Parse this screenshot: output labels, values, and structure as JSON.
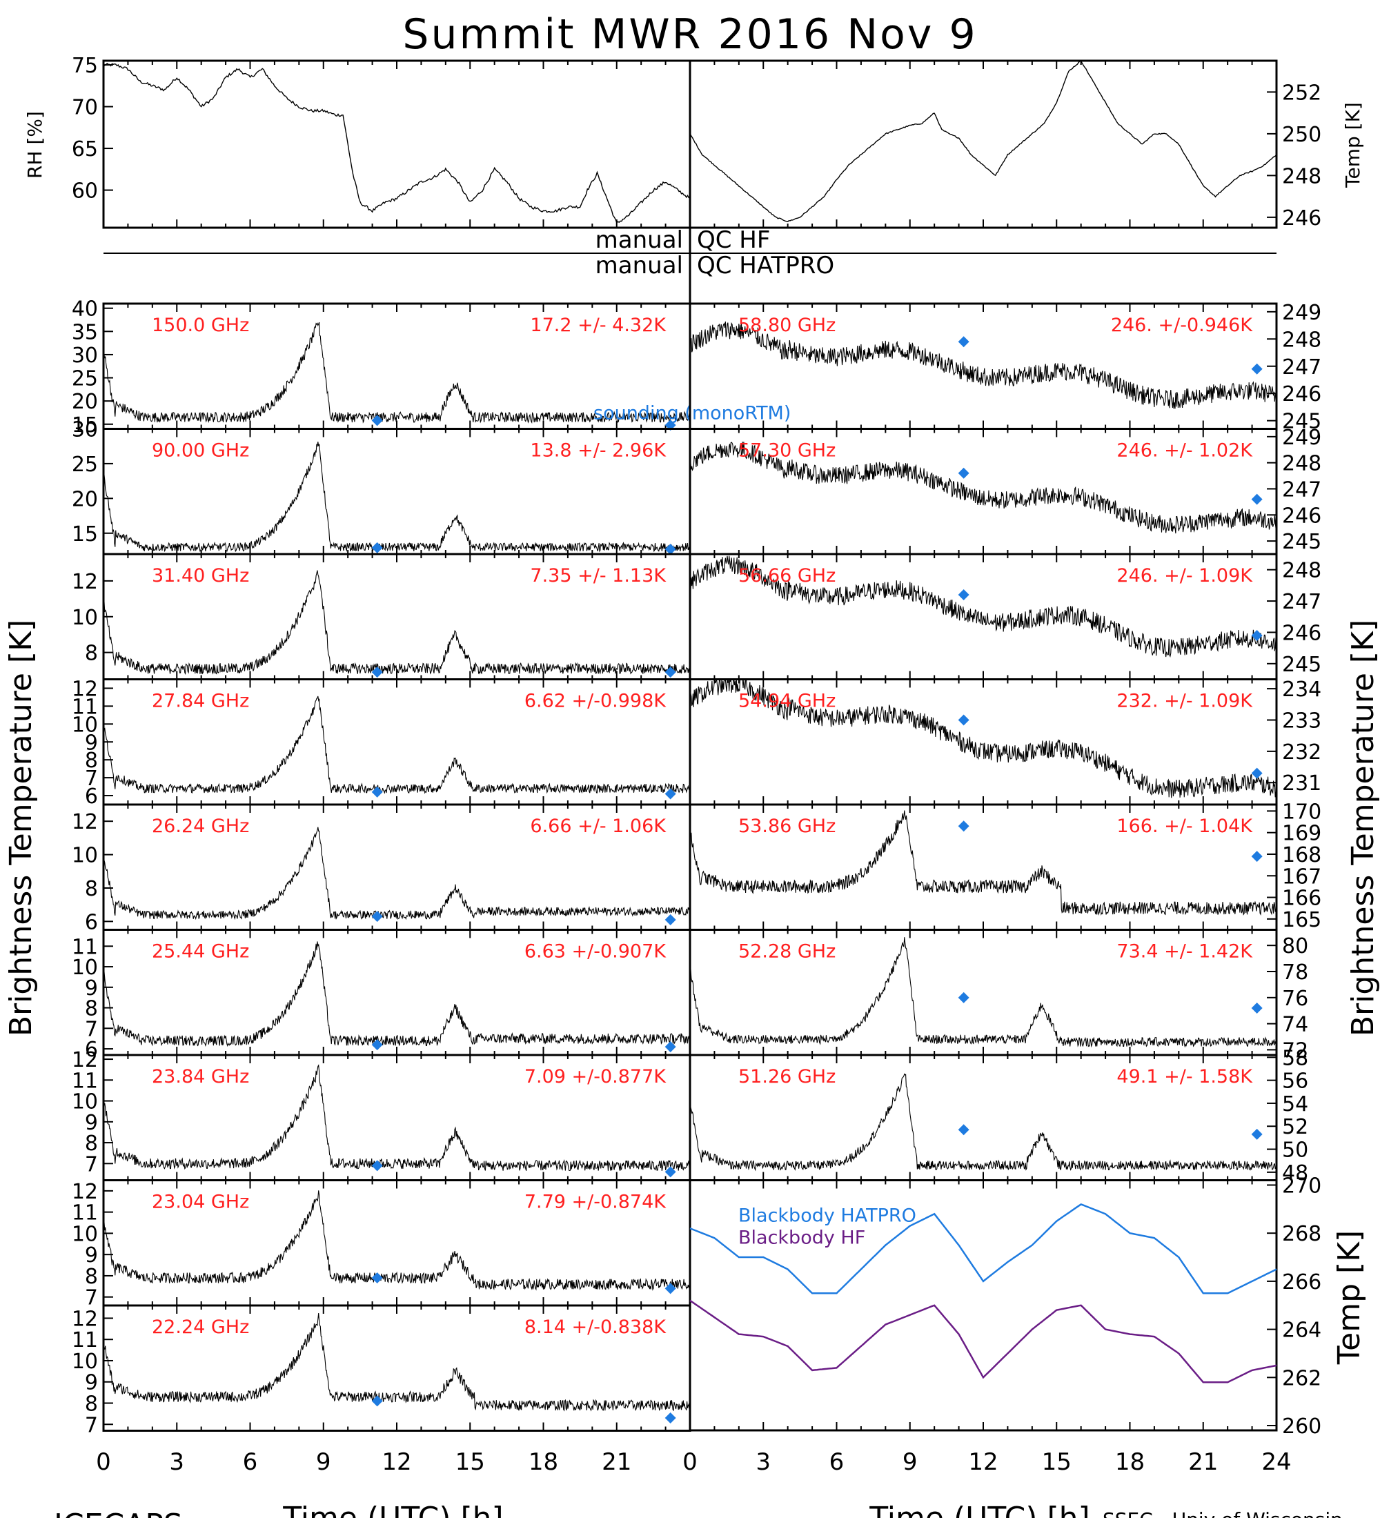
{
  "figure": {
    "title": "Summit MWR 2016 Nov  9",
    "bottom_left_label": "ICECAPS",
    "credit": "SSEC - Univ of Wisconsin",
    "xlabel": "Time (UTC) [h]",
    "left_ylabel": "Brightness Temperature [K]",
    "right_ylabel": "Brightness Temperature [K]",
    "qc_hf": "manual   QC HF",
    "qc_hatpro": "manual   QC HATPRO",
    "x_ticks": [
      "0",
      "3",
      "6",
      "9",
      "12",
      "15",
      "18",
      "21",
      "24"
    ],
    "left_x_ticks": [
      "0",
      "3",
      "6",
      "9",
      "12",
      "15",
      "18",
      "21"
    ],
    "colors": {
      "channel_text": "#ff2020",
      "sounding": "#1e7be0",
      "hatpro": "#1e7be0",
      "hf": "#6a1d86",
      "trace": "#000000"
    }
  },
  "chart_data": [
    {
      "type": "line",
      "panel": "rh",
      "ylabel": "RH [%]",
      "yticks": [
        60,
        65,
        70,
        75
      ],
      "ylim": [
        55.5,
        75.5
      ],
      "xlim": [
        0,
        24
      ],
      "series": [
        {
          "x": [
            0,
            0.5,
            1,
            1.5,
            2,
            2.5,
            3,
            3.5,
            4,
            4.5,
            5,
            5.5,
            6,
            6.5,
            7,
            7.5,
            8,
            8.5,
            9,
            9.5,
            9.8,
            10.2,
            10.5,
            11,
            11.5,
            12,
            12.5,
            13,
            13.5,
            14,
            14.5,
            15,
            15.5,
            16,
            16.5,
            17,
            17.5,
            18,
            18.5,
            19,
            19.5,
            19.8,
            20.2,
            20.6,
            21,
            21.5,
            22,
            22.5,
            23,
            23.5,
            24
          ],
          "values": [
            75,
            75,
            74.5,
            73,
            72.5,
            72,
            73.5,
            72,
            70,
            71,
            73.5,
            74.5,
            73.5,
            74.5,
            72.5,
            71,
            70,
            69.5,
            69.5,
            69,
            69,
            62,
            58.5,
            57.5,
            58.5,
            59,
            60,
            61,
            61.5,
            62.5,
            61,
            58.5,
            60,
            62.5,
            61,
            59,
            58,
            57.5,
            57.5,
            58,
            58,
            60,
            62,
            59,
            56,
            57,
            58.5,
            60,
            61,
            60,
            59
          ]
        }
      ]
    },
    {
      "type": "line",
      "panel": "temp",
      "ylabel": "Temp [K]",
      "yticks": [
        246,
        248,
        250,
        252
      ],
      "ylim": [
        245.5,
        253.5
      ],
      "xlim": [
        0,
        24
      ],
      "series": [
        {
          "x": [
            0,
            0.5,
            1,
            1.5,
            2,
            2.5,
            3,
            3.5,
            4,
            4.5,
            5,
            5.5,
            6,
            6.5,
            7,
            7.5,
            8,
            8.5,
            9,
            9.5,
            10,
            10.3,
            10.6,
            11,
            11.5,
            12,
            12.5,
            13,
            13.5,
            14,
            14.5,
            15,
            15.5,
            16,
            16.5,
            17,
            17.5,
            18,
            18.5,
            19,
            19.5,
            20,
            20.5,
            21,
            21.5,
            22,
            22.5,
            23,
            23.5,
            24
          ],
          "values": [
            250,
            249,
            248.5,
            248,
            247.5,
            247,
            246.5,
            246,
            245.8,
            246,
            246.5,
            247,
            247.8,
            248.5,
            249,
            249.5,
            250,
            250.2,
            250.4,
            250.5,
            251,
            250.2,
            250,
            249.8,
            249,
            248.5,
            248,
            249,
            249.5,
            250,
            250.5,
            251.5,
            253,
            253.5,
            252.5,
            251.5,
            250.5,
            250,
            249.5,
            250,
            250,
            249.5,
            248.5,
            247.5,
            247,
            247.5,
            248,
            248.2,
            248.5,
            249
          ]
        }
      ]
    },
    {
      "type": "line",
      "panel": "left-channels",
      "xlim": [
        0,
        24
      ],
      "channels": [
        {
          "freq": "150.0 GHz",
          "stats": "17.2 +/-  4.32K",
          "yticks": [
            15,
            20,
            25,
            30,
            35,
            40
          ],
          "ylim": [
            14,
            41
          ],
          "baseline": 16.5,
          "peak": 37,
          "bump": 24,
          "late": 16.5,
          "noise": 1.1,
          "sonde": [
            15.8,
            14.8
          ],
          "note": "sounding (monoRTM)"
        },
        {
          "freq": "90.00 GHz",
          "stats": "13.8 +/-  2.96K",
          "yticks": [
            15,
            20,
            25,
            30
          ],
          "ylim": [
            12,
            30
          ],
          "baseline": 13.0,
          "peak": 28,
          "bump": 17.5,
          "late": 13.0,
          "noise": 0.6,
          "sonde": [
            12.9,
            12.7
          ]
        },
        {
          "freq": "31.40 GHz",
          "stats": "7.35 +/- 1.13K",
          "yticks": [
            8,
            10,
            12
          ],
          "ylim": [
            6.5,
            13.5
          ],
          "baseline": 7.1,
          "peak": 12.5,
          "bump": 9.0,
          "late": 7.1,
          "noise": 0.3,
          "sonde": [
            6.9,
            6.9
          ]
        },
        {
          "freq": "27.84 GHz",
          "stats": "6.62 +/-0.998K",
          "yticks": [
            6,
            7,
            8,
            9,
            10,
            11,
            12
          ],
          "ylim": [
            5.5,
            12.5
          ],
          "baseline": 6.4,
          "peak": 11.5,
          "bump": 8.0,
          "late": 6.4,
          "noise": 0.25,
          "sonde": [
            6.2,
            6.1
          ]
        },
        {
          "freq": "26.24 GHz",
          "stats": "6.66 +/- 1.06K",
          "yticks": [
            6,
            8,
            10,
            12
          ],
          "ylim": [
            5.5,
            13
          ],
          "baseline": 6.4,
          "peak": 11.5,
          "bump": 8.0,
          "late": 6.6,
          "noise": 0.25,
          "sonde": [
            6.3,
            6.1
          ]
        },
        {
          "freq": "25.44 GHz",
          "stats": "6.63 +/-0.907K",
          "yticks": [
            6,
            7,
            8,
            9,
            10,
            11
          ],
          "ylim": [
            5.7,
            11.8
          ],
          "baseline": 6.4,
          "peak": 11.2,
          "bump": 8.0,
          "late": 6.5,
          "noise": 0.25,
          "sonde": [
            6.2,
            6.1
          ]
        },
        {
          "freq": "23.84 GHz",
          "stats": "7.09 +/-0.877K",
          "yticks": [
            7,
            8,
            9,
            10,
            11,
            12
          ],
          "ylim": [
            6.2,
            12.2
          ],
          "baseline": 7.0,
          "peak": 11.5,
          "bump": 8.5,
          "late": 6.9,
          "noise": 0.25,
          "sonde": [
            6.9,
            6.6
          ]
        },
        {
          "freq": "23.04 GHz",
          "stats": "7.79 +/-0.874K",
          "yticks": [
            7,
            8,
            9,
            10,
            11,
            12
          ],
          "ylim": [
            6.6,
            12.5
          ],
          "baseline": 7.9,
          "peak": 11.8,
          "bump": 9.0,
          "late": 7.6,
          "noise": 0.25,
          "sonde": [
            7.9,
            7.4
          ]
        },
        {
          "freq": "22.24 GHz",
          "stats": "8.14 +/-0.838K",
          "yticks": [
            7,
            8,
            9,
            10,
            11,
            12
          ],
          "ylim": [
            6.7,
            12.6
          ],
          "baseline": 8.3,
          "peak": 12.0,
          "bump": 9.5,
          "late": 7.9,
          "noise": 0.25,
          "sonde": [
            8.1,
            7.3
          ]
        }
      ]
    },
    {
      "type": "line",
      "panel": "right-channels",
      "xlim": [
        0,
        24
      ],
      "channels": [
        {
          "freq": "58.80 GHz",
          "stats": "246. +/-0.946K",
          "yticks": [
            245,
            246,
            247,
            248,
            249
          ],
          "ylim": [
            244.7,
            249.3
          ],
          "shape": "decline",
          "start": 247.8,
          "end": 245.8,
          "noise": 0.35,
          "sonde": [
            247.9,
            246.9
          ]
        },
        {
          "freq": "57.30 GHz",
          "stats": "246. +/- 1.02K",
          "yticks": [
            245,
            246,
            247,
            248,
            249
          ],
          "ylim": [
            244.5,
            249.3
          ],
          "shape": "decline",
          "start": 248.0,
          "end": 245.6,
          "noise": 0.35,
          "sonde": [
            247.6,
            246.6
          ]
        },
        {
          "freq": "56.66 GHz",
          "stats": "246. +/- 1.09K",
          "yticks": [
            245,
            246,
            247,
            248
          ],
          "ylim": [
            244.5,
            248.5
          ],
          "shape": "decline",
          "start": 247.6,
          "end": 245.5,
          "noise": 0.3,
          "sonde": [
            247.2,
            245.9
          ]
        },
        {
          "freq": "54.94 GHz",
          "stats": "232. +/- 1.09K",
          "yticks": [
            231,
            232,
            233,
            234
          ],
          "ylim": [
            230.3,
            234.3
          ],
          "shape": "decline",
          "start": 233.6,
          "end": 230.7,
          "noise": 0.3,
          "sonde": [
            233.0,
            231.3
          ]
        },
        {
          "freq": "53.86 GHz",
          "stats": "166. +/- 1.04K",
          "yticks": [
            165,
            166,
            167,
            168,
            169,
            170
          ],
          "ylim": [
            164.5,
            170.3
          ],
          "shape": "peak",
          "baseline": 166.5,
          "peak": 170.0,
          "bump": 167.2,
          "late": 165.5,
          "noise": 0.3,
          "sonde": [
            169.3,
            167.9
          ]
        },
        {
          "freq": "52.28 GHz",
          "stats": "73.4 +/- 1.42K",
          "yticks": [
            72,
            74,
            76,
            78,
            80
          ],
          "ylim": [
            71.6,
            81.2
          ],
          "shape": "peak",
          "baseline": 72.8,
          "peak": 80.5,
          "bump": 75.5,
          "late": 72.6,
          "noise": 0.35,
          "sonde": [
            76.0,
            75.2
          ]
        },
        {
          "freq": "51.26 GHz",
          "stats": "49.1 +/- 1.58K",
          "yticks": [
            48,
            50,
            52,
            54,
            56,
            58
          ],
          "ylim": [
            47.3,
            58.2
          ],
          "shape": "peak",
          "baseline": 48.6,
          "peak": 56.5,
          "bump": 51.5,
          "late": 48.6,
          "noise": 0.4,
          "sonde": [
            51.7,
            51.3
          ]
        }
      ]
    },
    {
      "type": "line",
      "panel": "blackbody",
      "ylabel": "Temp [K]",
      "yticks": [
        260,
        262,
        264,
        266,
        268,
        270
      ],
      "ylim": [
        259.8,
        270.2
      ],
      "xlim": [
        0,
        24
      ],
      "series": [
        {
          "name": "Blackbody HATPRO",
          "color": "#1e7be0",
          "x": [
            0,
            1,
            2,
            3,
            4,
            5,
            6,
            7,
            8,
            9,
            10,
            11,
            12,
            13,
            14,
            15,
            16,
            17,
            18,
            19,
            20,
            21,
            22,
            23,
            24
          ],
          "values": [
            268.2,
            267.8,
            267.0,
            267.0,
            266.5,
            265.5,
            265.5,
            266.5,
            267.5,
            268.3,
            268.8,
            267.5,
            266.0,
            266.8,
            267.5,
            268.5,
            269.2,
            268.8,
            268.0,
            267.8,
            267.0,
            265.5,
            265.5,
            266.0,
            266.5
          ]
        },
        {
          "name": "Blackbody HF",
          "color": "#6a1d86",
          "x": [
            0,
            1,
            2,
            3,
            4,
            5,
            6,
            7,
            8,
            9,
            10,
            11,
            12,
            13,
            14,
            15,
            16,
            17,
            18,
            19,
            20,
            21,
            22,
            23,
            24
          ],
          "values": [
            265.2,
            264.5,
            263.8,
            263.7,
            263.3,
            262.3,
            262.4,
            263.3,
            264.2,
            264.6,
            265.0,
            263.8,
            262.0,
            263.0,
            264.0,
            264.8,
            265.0,
            264.0,
            263.8,
            263.7,
            263.0,
            261.8,
            261.8,
            262.3,
            262.5
          ]
        }
      ]
    }
  ]
}
